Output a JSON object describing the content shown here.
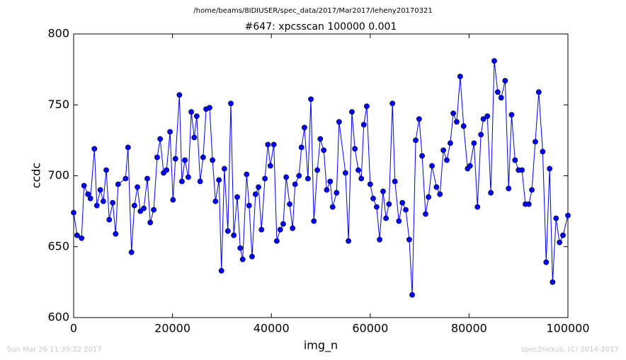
{
  "chart_data": {
    "type": "line",
    "suptitle": "/home/beams/8IDIUSER/spec_data/2017/Mar2017/leheny20170321",
    "title": "#647: xpcsscan 100000 0.001",
    "xlabel": "img_n",
    "ylabel": "ccdc",
    "footer_left": "Sun Mar 26 11:39:22 2017",
    "footer_right": "spec2nexus, (C) 2014-2017",
    "color": "#0000ff",
    "marker": "o",
    "xlim": [
      0,
      100000
    ],
    "xticks": [
      0,
      20000,
      40000,
      60000,
      80000,
      100000
    ],
    "ylim": [
      600,
      800
    ],
    "yticks": [
      600,
      650,
      700,
      750,
      800
    ],
    "x": [
      0,
      700,
      1600,
      2100,
      2900,
      3400,
      4200,
      4700,
      5400,
      6000,
      6600,
      7200,
      7900,
      8500,
      9000,
      10500,
      11000,
      11700,
      12300,
      12900,
      13500,
      14200,
      14900,
      15500,
      16200,
      16900,
      17500,
      18200,
      18800,
      19500,
      20100,
      20600,
      21400,
      21900,
      22500,
      23200,
      23800,
      24400,
      24900,
      25600,
      26200,
      26800,
      27500,
      28100,
      28700,
      29400,
      29900,
      30500,
      31200,
      31800,
      32400,
      33100,
      33700,
      34200,
      35000,
      35500,
      36100,
      36800,
      37400,
      38000,
      38700,
      39300,
      39800,
      40500,
      41100,
      41800,
      42400,
      43000,
      43700,
      44300,
      44800,
      45600,
      46100,
      46700,
      47400,
      48000,
      48600,
      49300,
      49900,
      50600,
      51200,
      51900,
      52400,
      53200,
      53700,
      55000,
      55600,
      56300,
      56900,
      57600,
      58200,
      58700,
      59300,
      60000,
      60600,
      61300,
      61900,
      62600,
      63200,
      63800,
      64500,
      65000,
      65800,
      66500,
      67200,
      67900,
      68500,
      69200,
      69900,
      70500,
      71200,
      71800,
      72500,
      73400,
      74100,
      74800,
      75500,
      76200,
      76800,
      77500,
      78200,
      78900,
      79700,
      80200,
      81000,
      81700,
      82400,
      82900,
      83700,
      84400,
      85100,
      85800,
      86500,
      87300,
      88000,
      88600,
      89300,
      90000,
      90700,
      91400,
      92100,
      92700,
      93400,
      94100,
      94900,
      95600,
      96300,
      96900,
      97600,
      98300,
      99000,
      100000
    ],
    "values": [
      674,
      658,
      656,
      693,
      687,
      684,
      719,
      679,
      690,
      682,
      704,
      669,
      681,
      659,
      694,
      698,
      720,
      646,
      679,
      692,
      675,
      677,
      698,
      667,
      676,
      713,
      726,
      702,
      704,
      731,
      683,
      712,
      757,
      696,
      711,
      699,
      745,
      727,
      742,
      696,
      713,
      747,
      748,
      711,
      682,
      697,
      633,
      705,
      661,
      751,
      658,
      685,
      649,
      641,
      701,
      679,
      643,
      687,
      692,
      662,
      698,
      722,
      707,
      722,
      654,
      662,
      666,
      699,
      680,
      663,
      694,
      700,
      720,
      734,
      698,
      754,
      668,
      704,
      726,
      718,
      690,
      696,
      678,
      688,
      738,
      702,
      654,
      745,
      719,
      704,
      698,
      736,
      749,
      694,
      684,
      678,
      655,
      689,
      670,
      680,
      751,
      696,
      668,
      681,
      676,
      655,
      616,
      725,
      740,
      714,
      673,
      685,
      707,
      692,
      687,
      718,
      711,
      723,
      744,
      738,
      770,
      735,
      705,
      707,
      723,
      678,
      729,
      740,
      742,
      688,
      781,
      759,
      755,
      767,
      691,
      743,
      711,
      704,
      704,
      680,
      680,
      690,
      724,
      759,
      717,
      639,
      705,
      625,
      670,
      653,
      658,
      672
    ]
  }
}
